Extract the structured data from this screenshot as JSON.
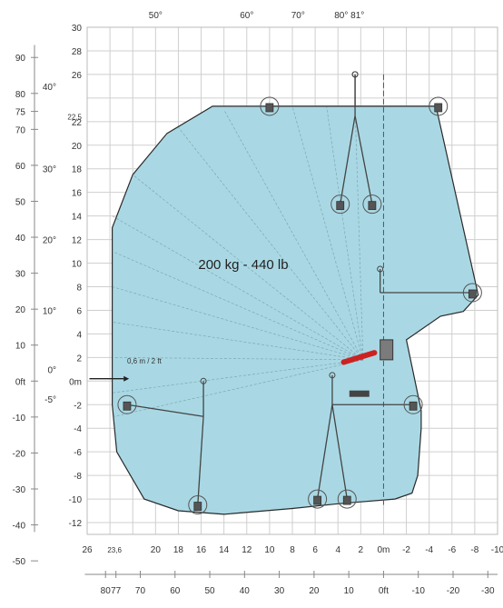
{
  "chart_data": {
    "type": "area",
    "title": "",
    "xlabel": "",
    "ylabel": "",
    "capacity_label": "200 kg - 440 lb",
    "offset_note": "0,6 m / 2 ft",
    "grid": true,
    "colors": {
      "envelope": "#a9d8e4",
      "boom": "#cc2222",
      "grid": "#cfcfcf",
      "lines": "#444444"
    },
    "xlim": [
      26,
      -10
    ],
    "ylim": [
      -13,
      30
    ],
    "x_ticks_m": [
      "26",
      "23,6",
      "20",
      "18",
      "16",
      "14",
      "12",
      "10",
      "8",
      "6",
      "4",
      "2",
      "0m",
      "-2",
      "-4",
      "-6",
      "-8",
      "-10"
    ],
    "x_ticks_m_values": [
      26,
      23.6,
      20,
      18,
      16,
      14,
      12,
      10,
      8,
      6,
      4,
      2,
      0,
      -2,
      -4,
      -6,
      -8,
      -10
    ],
    "x_ticks_ft": [
      "80",
      "77",
      "70",
      "60",
      "50",
      "40",
      "30",
      "20",
      "10",
      "0ft",
      "-10",
      "-20",
      "-30"
    ],
    "x_ticks_ft_values": [
      80,
      77,
      70,
      60,
      50,
      40,
      30,
      20,
      10,
      0,
      -10,
      -20,
      -30
    ],
    "y_ticks_m": [
      "30",
      "28",
      "26",
      "22,5",
      "22",
      "20",
      "18",
      "16",
      "14",
      "12",
      "10",
      "8",
      "6",
      "4",
      "2",
      "0m",
      "-2",
      "-4",
      "-6",
      "-8",
      "-10",
      "-12"
    ],
    "y_ticks_m_values": [
      30,
      28,
      26,
      22.5,
      22,
      20,
      18,
      16,
      14,
      12,
      10,
      8,
      6,
      4,
      2,
      0,
      -2,
      -4,
      -6,
      -8,
      -10,
      -12
    ],
    "y_ticks_ft": [
      "90",
      "80",
      "75",
      "70",
      "60",
      "50",
      "40",
      "30",
      "20",
      "10",
      "0ft",
      "-10",
      "-20",
      "-30",
      "-40",
      "-50"
    ],
    "y_ticks_ft_values": [
      90,
      80,
      75,
      70,
      60,
      50,
      40,
      30,
      20,
      10,
      0,
      -10,
      -20,
      -30,
      -40,
      -50
    ],
    "angle_labels_left": [
      "40°",
      "30°",
      "20°",
      "10°",
      "0°",
      "-5°"
    ],
    "angle_labels_left_y": [
      25,
      18,
      12,
      6,
      1,
      -1.5
    ],
    "angle_labels_top": [
      "50°",
      "60°",
      "70°",
      "80° 81°"
    ],
    "angle_labels_top_x": [
      20,
      12,
      7.5,
      3
    ],
    "envelope": [
      [
        15,
        23.3
      ],
      [
        -4.6,
        23.3
      ],
      [
        -8.3,
        7.3
      ],
      [
        -7,
        5.9
      ],
      [
        -5,
        5.5
      ],
      [
        -2,
        3.5
      ],
      [
        -3.3,
        -2.5
      ],
      [
        -3.3,
        -4
      ],
      [
        -3,
        -8
      ],
      [
        -2.5,
        -9.5
      ],
      [
        -1,
        -10
      ],
      [
        4,
        -10.4
      ],
      [
        8,
        -10.8
      ],
      [
        14,
        -11.3
      ],
      [
        18,
        -11
      ],
      [
        21,
        -10
      ],
      [
        23.4,
        -6
      ],
      [
        23.8,
        -2
      ],
      [
        23.8,
        13
      ],
      [
        22,
        17.5
      ],
      [
        19,
        21
      ],
      [
        15,
        23.3
      ]
    ],
    "fan_origin": [
      1.8,
      1.8
    ],
    "fan_ends": [
      [
        8,
        23.3
      ],
      [
        14,
        23
      ],
      [
        18,
        21.5
      ],
      [
        22,
        17.5
      ],
      [
        23.8,
        14
      ],
      [
        23.8,
        11
      ],
      [
        23.8,
        8
      ],
      [
        23.8,
        5
      ],
      [
        23.8,
        2
      ],
      [
        23.8,
        -1
      ],
      [
        23.6,
        -3
      ],
      [
        5,
        23.3
      ],
      [
        2.5,
        23.3
      ]
    ],
    "boom_poses": [
      {
        "pivot": [
          2.5,
          26
        ],
        "joint": [
          2.5,
          23.3
        ],
        "baskets": [
          [
            10,
            23.3
          ],
          [
            -4.8,
            23.3
          ]
        ]
      },
      {
        "pivot": [
          2.5,
          26
        ],
        "joint": [
          2.5,
          22.5
        ],
        "baskets": [
          [
            3.8,
            15
          ],
          [
            1,
            15
          ]
        ]
      },
      {
        "pivot": [
          0.3,
          9.5
        ],
        "joint": [
          0.3,
          7.5
        ],
        "baskets": [
          [
            -7.8,
            7.5
          ]
        ]
      },
      {
        "pivot": [
          4.5,
          0.5
        ],
        "joint": [
          4.5,
          -2
        ],
        "baskets": [
          [
            -2.6,
            -2
          ],
          [
            5.8,
            -10
          ],
          [
            3.2,
            -10
          ]
        ]
      },
      {
        "pivot": [
          15.8,
          0
        ],
        "joint": [
          15.8,
          -3
        ],
        "baskets": [
          [
            22.5,
            -2
          ],
          [
            16.3,
            -10.5
          ]
        ]
      }
    ],
    "reference_line_x": 0
  }
}
